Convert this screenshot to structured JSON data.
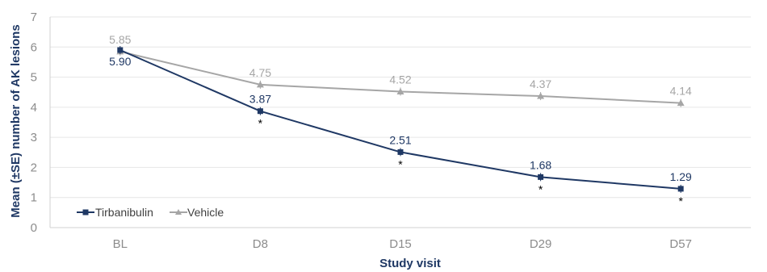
{
  "chart_data": {
    "type": "line",
    "title": "",
    "xlabel": "Study visit",
    "ylabel": "Mean (±SE) number of AK lesions",
    "categories": [
      "BL",
      "D8",
      "D15",
      "D29",
      "D57"
    ],
    "ylim": [
      0,
      7
    ],
    "yticks": [
      0,
      1,
      2,
      3,
      4,
      5,
      6,
      7
    ],
    "grid": "horizontal",
    "legend_position": "bottom-left",
    "series": [
      {
        "name": "Tirbanibulin",
        "values": [
          5.9,
          3.87,
          2.51,
          1.68,
          1.29
        ],
        "labels": [
          "5.90",
          "3.87",
          "2.51",
          "1.68",
          "1.29"
        ],
        "significance": [
          "",
          "*",
          "*",
          "*",
          "*"
        ],
        "color": "#1f3864",
        "marker": "square"
      },
      {
        "name": "Vehicle",
        "values": [
          5.85,
          4.75,
          4.52,
          4.37,
          4.14
        ],
        "labels": [
          "5.85",
          "4.75",
          "4.52",
          "4.37",
          "4.14"
        ],
        "color": "#a6a6a6",
        "marker": "triangle"
      }
    ]
  }
}
